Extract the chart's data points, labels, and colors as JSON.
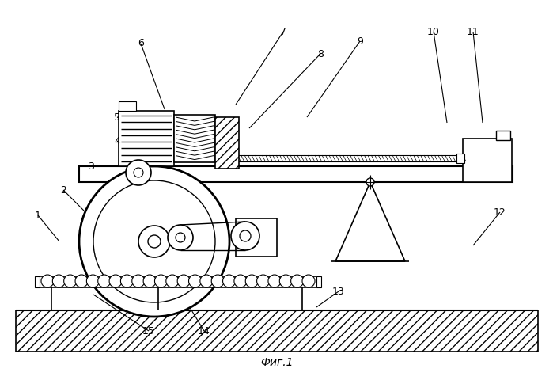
{
  "title": "Фиг.1",
  "bg_color": "#ffffff",
  "line_color": "#000000",
  "labels_data": [
    [
      "1",
      48,
      272,
      75,
      305
    ],
    [
      "2",
      80,
      240,
      108,
      268
    ],
    [
      "3",
      115,
      210,
      148,
      232
    ],
    [
      "4",
      148,
      178,
      175,
      198
    ],
    [
      "5",
      148,
      148,
      178,
      162
    ],
    [
      "6",
      178,
      55,
      208,
      138
    ],
    [
      "7",
      358,
      40,
      298,
      132
    ],
    [
      "8",
      405,
      68,
      315,
      162
    ],
    [
      "9",
      455,
      52,
      388,
      148
    ],
    [
      "10",
      548,
      40,
      565,
      155
    ],
    [
      "11",
      598,
      40,
      610,
      155
    ],
    [
      "12",
      632,
      268,
      598,
      310
    ],
    [
      "13",
      428,
      368,
      400,
      388
    ],
    [
      "14",
      258,
      418,
      230,
      372
    ],
    [
      "15",
      188,
      418,
      118,
      372
    ]
  ]
}
